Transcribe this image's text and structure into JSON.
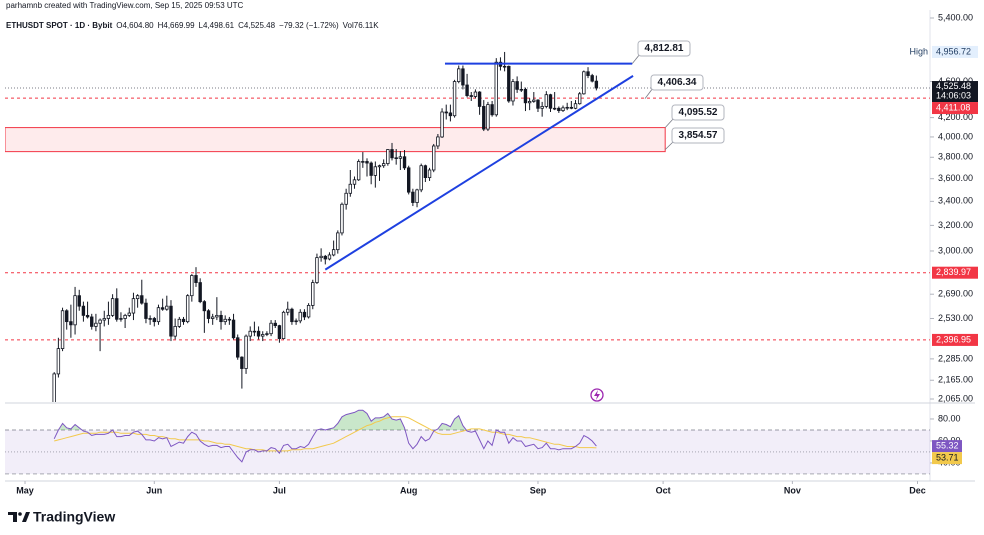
{
  "header": "parhamnb created with TradingView.com, Sep 15, 2025 09:53 UTC",
  "brand": "TradingView",
  "chart_data": {
    "type": "candlestick",
    "title": "ETHUSDT SPOT · 1D · Bybit",
    "legend_values": [
      "O4,604.80",
      "H4,669.99",
      "L4,498.61",
      "C4,525.48",
      "−79.32 (−1.72%)",
      "Vol76.11K"
    ],
    "log_scale": true,
    "up_color": "#ffffff",
    "down_color": "#131722",
    "wick_color": "#131722",
    "xlim": [
      -4.8,
      217
    ],
    "xticks": [
      {
        "value": 0,
        "label": "May"
      },
      {
        "value": 31,
        "label": "Jun"
      },
      {
        "value": 61,
        "label": "Jul"
      },
      {
        "value": 92,
        "label": "Aug"
      },
      {
        "value": 123,
        "label": "Sep"
      },
      {
        "value": 153,
        "label": "Oct"
      },
      {
        "value": 184,
        "label": "Nov"
      },
      {
        "value": 214,
        "label": "Dec"
      }
    ],
    "ylim": [
      2065,
      5400
    ],
    "yticks": [
      {
        "value": 5400,
        "label": "5,400.00"
      },
      {
        "value": 4600,
        "label": "4,600.00"
      },
      {
        "value": 4200,
        "label": "4,200.00"
      },
      {
        "value": 4000,
        "label": "4,000.00"
      },
      {
        "value": 3800,
        "label": "3,800.00"
      },
      {
        "value": 3600,
        "label": "3,600.00"
      },
      {
        "value": 3400,
        "label": "3,400.00"
      },
      {
        "value": 3200,
        "label": "3,200.00"
      },
      {
        "value": 3000,
        "label": "3,000.00"
      },
      {
        "value": 2690,
        "label": "2,690.00"
      },
      {
        "value": 2530,
        "label": "2,530.00"
      },
      {
        "value": 2285,
        "label": "2,285.00"
      },
      {
        "value": 2165,
        "label": "2,165.00"
      },
      {
        "value": 2065,
        "label": "2,065.00"
      }
    ],
    "x": [
      7,
      8,
      9,
      10,
      11,
      12,
      13,
      14,
      15,
      16,
      17,
      18,
      19,
      20,
      21,
      22,
      23,
      24,
      25,
      26,
      27,
      28,
      29,
      30,
      31,
      32,
      33,
      34,
      35,
      36,
      37,
      38,
      39,
      40,
      41,
      42,
      43,
      44,
      45,
      46,
      47,
      48,
      49,
      50,
      51,
      52,
      53,
      54,
      55,
      56,
      57,
      58,
      59,
      60,
      61,
      62,
      63,
      64,
      65,
      66,
      67,
      68,
      69,
      70,
      71,
      72,
      73,
      74,
      75,
      76,
      77,
      78,
      79,
      80,
      81,
      82,
      83,
      84,
      85,
      86,
      87,
      88,
      89,
      90,
      91,
      92,
      93,
      94,
      95,
      96,
      97,
      98,
      99,
      100,
      101,
      102,
      103,
      104,
      105,
      106,
      107,
      108,
      109,
      110,
      111,
      112,
      113,
      114,
      115,
      116,
      117,
      118,
      119,
      120,
      121,
      122,
      123,
      124,
      125,
      126,
      127,
      128,
      129,
      130,
      131,
      132,
      133,
      134,
      135,
      136,
      137
    ],
    "candles": [
      [
        1810,
        2210,
        1795,
        2200
      ],
      [
        2200,
        2410,
        2180,
        2345
      ],
      [
        2345,
        2600,
        2330,
        2580
      ],
      [
        2580,
        2590,
        2460,
        2510
      ],
      [
        2510,
        2620,
        2410,
        2490
      ],
      [
        2490,
        2740,
        2430,
        2680
      ],
      [
        2680,
        2720,
        2580,
        2610
      ],
      [
        2610,
        2640,
        2510,
        2550
      ],
      [
        2550,
        2640,
        2530,
        2540
      ],
      [
        2540,
        2560,
        2460,
        2480
      ],
      [
        2480,
        2560,
        2450,
        2500
      ],
      [
        2500,
        2530,
        2330,
        2520
      ],
      [
        2520,
        2580,
        2480,
        2530
      ],
      [
        2530,
        2640,
        2490,
        2550
      ],
      [
        2550,
        2690,
        2540,
        2660
      ],
      [
        2660,
        2730,
        2510,
        2525
      ],
      [
        2525,
        2570,
        2510,
        2530
      ],
      [
        2530,
        2560,
        2470,
        2550
      ],
      [
        2550,
        2600,
        2540,
        2565
      ],
      [
        2565,
        2700,
        2520,
        2660
      ],
      [
        2660,
        2690,
        2600,
        2680
      ],
      [
        2680,
        2790,
        2620,
        2630
      ],
      [
        2630,
        2660,
        2500,
        2530
      ],
      [
        2530,
        2550,
        2490,
        2530
      ],
      [
        2530,
        2540,
        2480,
        2510
      ],
      [
        2510,
        2620,
        2490,
        2600
      ],
      [
        2600,
        2660,
        2580,
        2590
      ],
      [
        2590,
        2680,
        2580,
        2610
      ],
      [
        2610,
        2650,
        2390,
        2420
      ],
      [
        2420,
        2530,
        2400,
        2480
      ],
      [
        2480,
        2540,
        2470,
        2525
      ],
      [
        2525,
        2540,
        2490,
        2510
      ],
      [
        2510,
        2690,
        2500,
        2680
      ],
      [
        2680,
        2830,
        2640,
        2820
      ],
      [
        2820,
        2880,
        2740,
        2770
      ],
      [
        2770,
        2800,
        2630,
        2640
      ],
      [
        2640,
        2650,
        2440,
        2580
      ],
      [
        2580,
        2590,
        2500,
        2530
      ],
      [
        2530,
        2560,
        2490,
        2540
      ],
      [
        2540,
        2670,
        2520,
        2550
      ],
      [
        2550,
        2580,
        2460,
        2510
      ],
      [
        2510,
        2550,
        2490,
        2525
      ],
      [
        2525,
        2540,
        2490,
        2520
      ],
      [
        2520,
        2560,
        2400,
        2410
      ],
      [
        2410,
        2430,
        2280,
        2295
      ],
      [
        2295,
        2300,
        2120,
        2230
      ],
      [
        2230,
        2430,
        2200,
        2420
      ],
      [
        2420,
        2480,
        2390,
        2450
      ],
      [
        2450,
        2510,
        2420,
        2450
      ],
      [
        2450,
        2480,
        2400,
        2420
      ],
      [
        2420,
        2450,
        2390,
        2430
      ],
      [
        2430,
        2450,
        2420,
        2435
      ],
      [
        2435,
        2520,
        2420,
        2500
      ],
      [
        2500,
        2520,
        2470,
        2485
      ],
      [
        2485,
        2490,
        2380,
        2405
      ],
      [
        2405,
        2580,
        2400,
        2570
      ],
      [
        2570,
        2640,
        2550,
        2590
      ],
      [
        2590,
        2600,
        2490,
        2510
      ],
      [
        2510,
        2530,
        2490,
        2515
      ],
      [
        2515,
        2590,
        2500,
        2570
      ],
      [
        2570,
        2590,
        2520,
        2540
      ],
      [
        2540,
        2630,
        2530,
        2615
      ],
      [
        2615,
        2790,
        2590,
        2770
      ],
      [
        2770,
        2980,
        2760,
        2950
      ],
      [
        2950,
        3020,
        2920,
        2960
      ],
      [
        2960,
        2970,
        2900,
        2940
      ],
      [
        2940,
        2990,
        2930,
        2970
      ],
      [
        2970,
        3080,
        2960,
        3010
      ],
      [
        3010,
        3160,
        2980,
        3140
      ],
      [
        3140,
        3390,
        3120,
        3375
      ],
      [
        3375,
        3510,
        3330,
        3470
      ],
      [
        3470,
        3680,
        3440,
        3550
      ],
      [
        3550,
        3620,
        3510,
        3590
      ],
      [
        3590,
        3780,
        3580,
        3760
      ],
      [
        3760,
        3850,
        3700,
        3760
      ],
      [
        3760,
        3790,
        3620,
        3745
      ],
      [
        3745,
        3760,
        3550,
        3630
      ],
      [
        3630,
        3760,
        3520,
        3710
      ],
      [
        3710,
        3730,
        3580,
        3720
      ],
      [
        3720,
        3780,
        3700,
        3740
      ],
      [
        3740,
        3880,
        3720,
        3875
      ],
      [
        3875,
        3940,
        3770,
        3795
      ],
      [
        3795,
        3880,
        3730,
        3790
      ],
      [
        3790,
        3860,
        3680,
        3805
      ],
      [
        3805,
        3870,
        3680,
        3700
      ],
      [
        3700,
        3720,
        3460,
        3480
      ],
      [
        3480,
        3510,
        3360,
        3390
      ],
      [
        3390,
        3510,
        3350,
        3500
      ],
      [
        3500,
        3740,
        3480,
        3720
      ],
      [
        3720,
        3730,
        3570,
        3610
      ],
      [
        3610,
        3700,
        3580,
        3680
      ],
      [
        3680,
        3930,
        3660,
        3910
      ],
      [
        3910,
        4030,
        3880,
        4000
      ],
      [
        4000,
        4300,
        3990,
        4260
      ],
      [
        4260,
        4340,
        4180,
        4250
      ],
      [
        4250,
        4340,
        4160,
        4220
      ],
      [
        4220,
        4620,
        4200,
        4600
      ],
      [
        4600,
        4790,
        4580,
        4750
      ],
      [
        4750,
        4790,
        4510,
        4560
      ],
      [
        4560,
        4690,
        4420,
        4440
      ],
      [
        4440,
        4480,
        4380,
        4430
      ],
      [
        4430,
        4510,
        4410,
        4480
      ],
      [
        4480,
        4490,
        4230,
        4320
      ],
      [
        4320,
        4390,
        4060,
        4080
      ],
      [
        4080,
        4370,
        4060,
        4340
      ],
      [
        4340,
        4380,
        4210,
        4230
      ],
      [
        4230,
        4880,
        4210,
        4830
      ],
      [
        4830,
        4890,
        4730,
        4780
      ],
      [
        4780,
        4956.72,
        4720,
        4780
      ],
      [
        4780,
        4790,
        4360,
        4380
      ],
      [
        4380,
        4630,
        4330,
        4600
      ],
      [
        4600,
        4660,
        4470,
        4510
      ],
      [
        4510,
        4600,
        4480,
        4510
      ],
      [
        4510,
        4530,
        4270,
        4360
      ],
      [
        4360,
        4410,
        4280,
        4375
      ],
      [
        4375,
        4480,
        4360,
        4390
      ],
      [
        4390,
        4400,
        4260,
        4300
      ],
      [
        4300,
        4370,
        4210,
        4320
      ],
      [
        4320,
        4490,
        4300,
        4450
      ],
      [
        4450,
        4460,
        4260,
        4300
      ],
      [
        4300,
        4480,
        4280,
        4300
      ],
      [
        4300,
        4320,
        4250,
        4275
      ],
      [
        4275,
        4330,
        4260,
        4305
      ],
      [
        4305,
        4360,
        4280,
        4310
      ],
      [
        4310,
        4380,
        4290,
        4300
      ],
      [
        4300,
        4390,
        4290,
        4350
      ],
      [
        4350,
        4480,
        4340,
        4460
      ],
      [
        4460,
        4730,
        4450,
        4715
      ],
      [
        4715,
        4770,
        4640,
        4670
      ],
      [
        4670,
        4690,
        4590,
        4604.8
      ],
      [
        4604.8,
        4669.99,
        4498.61,
        4525.48
      ]
    ],
    "last_price": {
      "value": 4525.48,
      "label": "4,525.48",
      "countdown": "14:06:03",
      "color": "#131722"
    },
    "high": {
      "value": 4956.72,
      "label": "4,956.72",
      "text": "High"
    },
    "levels": [
      {
        "value": 4411.08,
        "label": "4,411.08",
        "color": "#f23645"
      },
      {
        "value": 2839.97,
        "label": "2,839.97",
        "color": "#f23645"
      },
      {
        "value": 2396.95,
        "label": "2,396.95",
        "color": "#f23645"
      }
    ],
    "zone": {
      "x": [
        -4.8,
        153.5
      ],
      "top": {
        "value": 4095.52,
        "label": "4,095.52"
      },
      "bottom": {
        "value": 3854.57,
        "label": "3,854.57"
      },
      "color": "#f23645"
    },
    "resistance": {
      "x": [
        100.7,
        145.6
      ],
      "value": 4812.81,
      "label": "4,812.81",
      "color": "#1e40e0"
    },
    "trendline": {
      "x": [
        72,
        145.8
      ],
      "values": [
        2862,
        4666
      ],
      "color": "#1e40e0",
      "label": {
        "value": 4406.34,
        "label": "4,406.34"
      }
    },
    "rsi": {
      "ylim": [
        24.5,
        92.7
      ],
      "yticks": [
        {
          "value": 80,
          "label": "80.00"
        },
        {
          "value": 60,
          "label": "60.00"
        },
        {
          "value": 40,
          "label": "40.00"
        }
      ],
      "band": [
        70,
        30
      ],
      "mid": 50,
      "color": "#7e57c2",
      "ma_color": "#f2c94c",
      "values": [
        62,
        70,
        76,
        72,
        71,
        75,
        72,
        69,
        68,
        65,
        66,
        66,
        66,
        67,
        70,
        64,
        64,
        65,
        65,
        68,
        69,
        66,
        61,
        61,
        60,
        63,
        62,
        63,
        55,
        57,
        59,
        58,
        64,
        68,
        66,
        60,
        57,
        55,
        56,
        56,
        54,
        55,
        55,
        50,
        45,
        41,
        50,
        52,
        52,
        50,
        51,
        51,
        54,
        53,
        49,
        56,
        57,
        53,
        53,
        55,
        54,
        57,
        64,
        70,
        71,
        70,
        71,
        72,
        76,
        82,
        84,
        85,
        86,
        88,
        88,
        85,
        78,
        81,
        81,
        82,
        85,
        80,
        79,
        80,
        72,
        58,
        53,
        57,
        64,
        60,
        62,
        69,
        71,
        76,
        75,
        73,
        80,
        83,
        74,
        69,
        68,
        69,
        61,
        53,
        60,
        56,
        70,
        68,
        68,
        58,
        63,
        60,
        60,
        55,
        56,
        57,
        53,
        54,
        58,
        53,
        53,
        52,
        53,
        53,
        53,
        55,
        58,
        65,
        63,
        60,
        55.32
      ],
      "ma": [
        60,
        61,
        62,
        63,
        64,
        65,
        66,
        67,
        67,
        67,
        67,
        68,
        68,
        68,
        68,
        68,
        67,
        67,
        67,
        67,
        66,
        66,
        66,
        65,
        65,
        64,
        64,
        63,
        62,
        62,
        61,
        61,
        61,
        61,
        61,
        61,
        60,
        60,
        59,
        58,
        58,
        57,
        57,
        56,
        55,
        54,
        53,
        53,
        52,
        52,
        52,
        51,
        51,
        51,
        51,
        51,
        51,
        52,
        52,
        52,
        53,
        53,
        53,
        54,
        55,
        56,
        57,
        58,
        60,
        62,
        64,
        66,
        68,
        70,
        72,
        74,
        75,
        77,
        78,
        80,
        81,
        82,
        82,
        82,
        82,
        81,
        79,
        77,
        75,
        73,
        71,
        69,
        67,
        66,
        66,
        66,
        67,
        68,
        69,
        70,
        71,
        71,
        71,
        70,
        69,
        68,
        68,
        67,
        66,
        66,
        65,
        64,
        64,
        63,
        63,
        62,
        61,
        60,
        59,
        58,
        57,
        57,
        56,
        55,
        55,
        55,
        54,
        54,
        54,
        54,
        53.71
      ]
    }
  }
}
